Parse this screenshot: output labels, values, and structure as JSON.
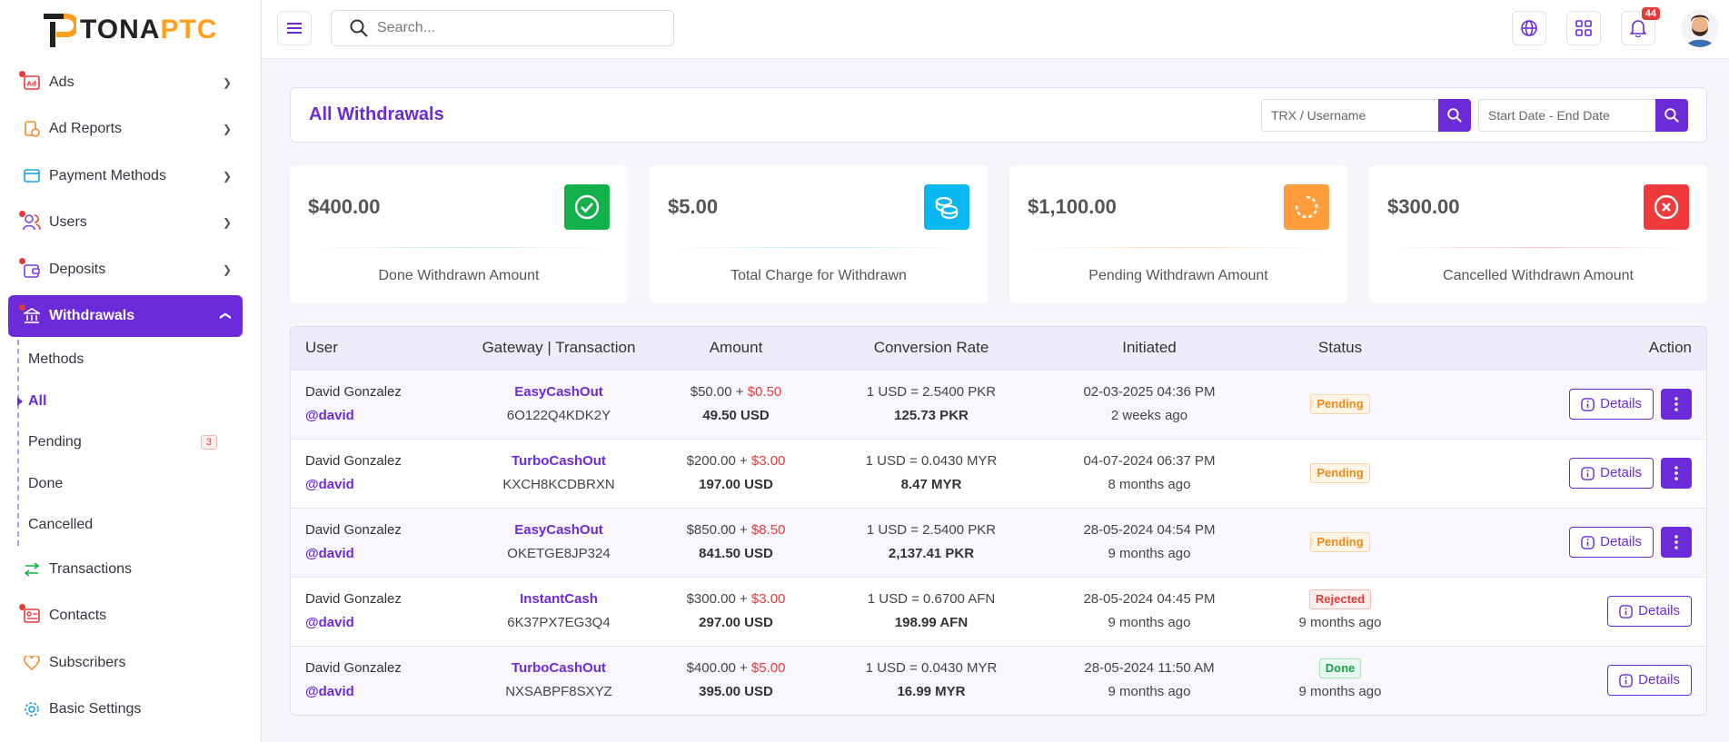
{
  "brand": {
    "name_a": "TONA",
    "name_b": "PTC",
    "accent": "#ff9f1c",
    "primary": "#6c2bd9"
  },
  "sidebar": {
    "items": [
      {
        "label": "Ads",
        "icon": "ad-icon"
      },
      {
        "label": "Ad Reports",
        "icon": "report-icon"
      },
      {
        "label": "Payment Methods",
        "icon": "card-icon"
      },
      {
        "label": "Users",
        "icon": "users-icon"
      },
      {
        "label": "Deposits",
        "icon": "wallet-icon"
      },
      {
        "label": "Withdrawals",
        "icon": "bank-icon"
      },
      {
        "label": "Transactions",
        "icon": "transfer-icon"
      },
      {
        "label": "Contacts",
        "icon": "contact-icon"
      },
      {
        "label": "Subscribers",
        "icon": "heart-icon"
      },
      {
        "label": "Basic Settings",
        "icon": "gear-icon"
      }
    ],
    "withdrawals_sub": [
      {
        "label": "Methods"
      },
      {
        "label": "All"
      },
      {
        "label": "Pending",
        "badge": "3"
      },
      {
        "label": "Done"
      },
      {
        "label": "Cancelled"
      }
    ]
  },
  "topbar": {
    "search_placeholder": "Search...",
    "notifications": "44"
  },
  "page": {
    "title": "All Withdrawals",
    "filter_trx_placeholder": "TRX / Username",
    "filter_date_placeholder": "Start Date - End Date"
  },
  "cards": [
    {
      "amount": "$400.00",
      "label": "Done Withdrawn Amount",
      "color": "#13b04b"
    },
    {
      "amount": "$5.00",
      "label": "Total Charge for Withdrawn",
      "color": "#0bb7f0"
    },
    {
      "amount": "$1,100.00",
      "label": "Pending Withdrawn Amount",
      "color": "#ff9c3b"
    },
    {
      "amount": "$300.00",
      "label": "Cancelled Withdrawn Amount",
      "color": "#f03a3a"
    }
  ],
  "table": {
    "headers": [
      "User",
      "Gateway | Transaction",
      "Amount",
      "Conversion Rate",
      "Initiated",
      "Status",
      "Action"
    ],
    "details_label": "Details",
    "rows": [
      {
        "user": "David Gonzalez",
        "handle": "@david",
        "gateway": "EasyCashOut",
        "trx": "6O122Q4KDK2Y",
        "amount": "$50.00 + ",
        "charge": "$0.50",
        "net": "49.50 USD",
        "rate": "1 USD = 2.5400 PKR",
        "converted": "125.73 PKR",
        "date": "02-03-2025 04:36 PM",
        "ago": "2 weeks ago",
        "status": "Pending",
        "status_ago": ""
      },
      {
        "user": "David Gonzalez",
        "handle": "@david",
        "gateway": "TurboCashOut",
        "trx": "KXCH8KCDBRXN",
        "amount": "$200.00 + ",
        "charge": "$3.00",
        "net": "197.00 USD",
        "rate": "1 USD = 0.0430 MYR",
        "converted": "8.47 MYR",
        "date": "04-07-2024 06:37 PM",
        "ago": "8 months ago",
        "status": "Pending",
        "status_ago": ""
      },
      {
        "user": "David Gonzalez",
        "handle": "@david",
        "gateway": "EasyCashOut",
        "trx": "OKETGE8JP324",
        "amount": "$850.00 + ",
        "charge": "$8.50",
        "net": "841.50 USD",
        "rate": "1 USD = 2.5400 PKR",
        "converted": "2,137.41 PKR",
        "date": "28-05-2024 04:54 PM",
        "ago": "9 months ago",
        "status": "Pending",
        "status_ago": ""
      },
      {
        "user": "David Gonzalez",
        "handle": "@david",
        "gateway": "InstantCash",
        "trx": "6K37PX7EG3Q4",
        "amount": "$300.00 + ",
        "charge": "$3.00",
        "net": "297.00 USD",
        "rate": "1 USD = 0.6700 AFN",
        "converted": "198.99 AFN",
        "date": "28-05-2024 04:45 PM",
        "ago": "9 months ago",
        "status": "Rejected",
        "status_ago": "9 months ago"
      },
      {
        "user": "David Gonzalez",
        "handle": "@david",
        "gateway": "TurboCashOut",
        "trx": "NXSABPF8SXYZ",
        "amount": "$400.00 + ",
        "charge": "$5.00",
        "net": "395.00 USD",
        "rate": "1 USD = 0.0430 MYR",
        "converted": "16.99 MYR",
        "date": "28-05-2024 11:50 AM",
        "ago": "9 months ago",
        "status": "Done",
        "status_ago": "9 months ago"
      }
    ]
  }
}
